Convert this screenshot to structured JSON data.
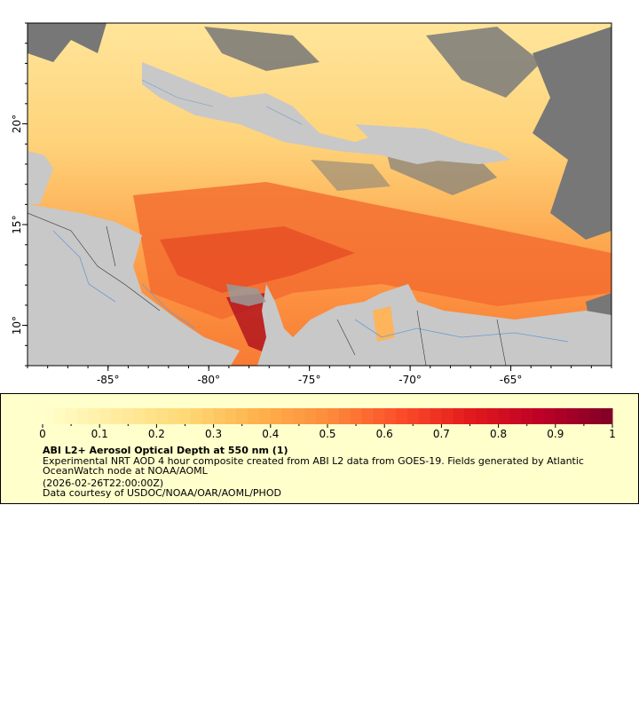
{
  "map": {
    "x_ticks": [
      {
        "lon": -85,
        "label": "-85°"
      },
      {
        "lon": -80,
        "label": "-80°"
      },
      {
        "lon": -75,
        "label": "-75°"
      },
      {
        "lon": -70,
        "label": "-70°"
      },
      {
        "lon": -65,
        "label": "-65°"
      }
    ],
    "y_ticks": [
      {
        "lat": 20,
        "label": "20°"
      },
      {
        "lat": 15,
        "label": "15°"
      },
      {
        "lat": 10,
        "label": "10°"
      }
    ],
    "lon_range": [
      -89,
      -60
    ],
    "lat_range": [
      8,
      25
    ]
  },
  "legend": {
    "title": "ABI L2+ Aerosol Optical Depth at 550 nm (1)",
    "description": "Experimental NRT AOD 4 hour composite created from ABI L2 data from GOES-19. Fields generated by Atlantic OceanWatch node at NOAA/AOML",
    "timestamp": "(2026-02-26T22:00:00Z)",
    "credit": "Data courtesy of USDOC/NOAA/OAR/AOML/PHOD",
    "ticks": [
      "0",
      "0.1",
      "0.2",
      "0.3",
      "0.4",
      "0.5",
      "0.6",
      "0.7",
      "0.8",
      "0.9",
      "1"
    ],
    "range": [
      0,
      1
    ],
    "colors": [
      "#ffffcc",
      "#ffeda0",
      "#fed976",
      "#feb24c",
      "#fd8d3c",
      "#fc4e2a",
      "#e31a1c",
      "#bd0026",
      "#800026"
    ]
  }
}
